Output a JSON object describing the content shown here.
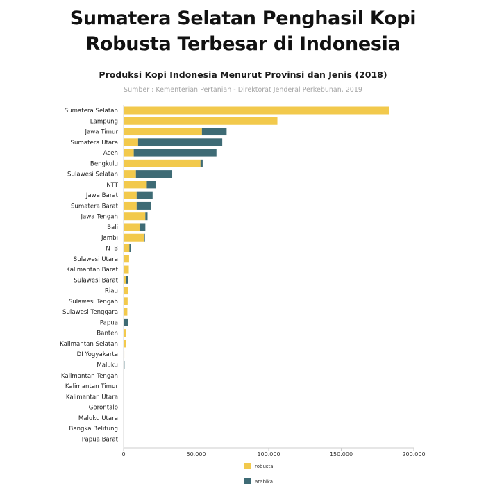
{
  "headline": {
    "line1": "Sumatera Selatan Penghasil Kopi",
    "line2": "Robusta Terbesar di Indonesia"
  },
  "colors": {
    "robusta": "#f2c94c",
    "arabika": "#3e6b75",
    "axis": "#cccccc"
  },
  "chart_data": {
    "type": "bar",
    "orientation": "horizontal",
    "stacked": true,
    "title": "Produksi Kopi Indonesia Menurut Provinsi dan Jenis (2018)",
    "subtitle": "Sumber : Kementerian Pertanian - Direktorat Jenderal Perkebunan, 2019",
    "xlim": [
      0,
      200000
    ],
    "xticks": [
      {
        "value": 0,
        "label": "0"
      },
      {
        "value": 50000,
        "label": "50.000"
      },
      {
        "value": 100000,
        "label": "100.000"
      },
      {
        "value": 150000,
        "label": "150.000"
      },
      {
        "value": 200000,
        "label": "200.000"
      }
    ],
    "grid": false,
    "legend": "bottom",
    "categories": [
      "Sumatera Selatan",
      "Lampung",
      "Jawa Timur",
      "Sumatera Utara",
      "Aceh",
      "Bengkulu",
      "Sulawesi Selatan",
      "NTT",
      "Jawa Barat",
      "Sumatera Barat",
      "Jawa Tengah",
      "Bali",
      "Jambi",
      "NTB",
      "Sulawesi Utara",
      "Kalimantan Barat",
      "Sulawesi Barat",
      "Riau",
      "Sulawesi Tengah",
      "Sulawesi Tenggara",
      "Papua",
      "Banten",
      "Kalimantan Selatan",
      "DI Yogyakarta",
      "Maluku",
      "Kalimantan Tengah",
      "Kalimantan Timur",
      "Kalimantan Utara",
      "Gorontalo",
      "Maluku Utara",
      "Bangka Belitung",
      "Papua Barat"
    ],
    "series": [
      {
        "name": "robusta",
        "values": [
          183000,
          106000,
          54000,
          10000,
          7000,
          53000,
          8500,
          16000,
          9000,
          9000,
          15000,
          11000,
          14000,
          4000,
          3800,
          3600,
          1500,
          3000,
          2800,
          2600,
          400,
          1800,
          1800,
          500,
          400,
          400,
          400,
          400,
          300,
          150,
          100,
          100
        ]
      },
      {
        "name": "arabika",
        "values": [
          0,
          0,
          17000,
          58000,
          57000,
          1500,
          25000,
          6000,
          11000,
          10000,
          1500,
          4000,
          700,
          800,
          0,
          0,
          1500,
          0,
          0,
          0,
          2600,
          0,
          0,
          0,
          100,
          0,
          0,
          0,
          0,
          0,
          0,
          0
        ]
      }
    ]
  }
}
